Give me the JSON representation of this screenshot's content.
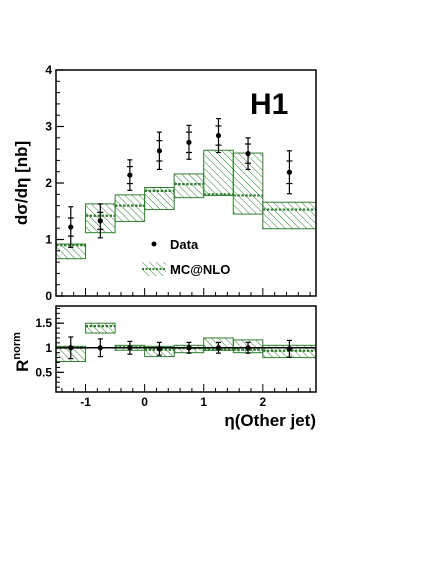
{
  "chart_data": [
    {
      "type": "histogram-with-errorbars",
      "panel": "main",
      "label": "H1",
      "ylabel": "dσ/dη [nb]",
      "xlim": [
        -1.5,
        2.9
      ],
      "ylim": [
        0,
        4
      ],
      "yticks": [
        0,
        1,
        2,
        3,
        4
      ],
      "bin_edges": [
        -1.5,
        -1.0,
        -0.5,
        0.0,
        0.5,
        1.0,
        1.5,
        2.0,
        2.9
      ],
      "series": [
        {
          "name": "Data",
          "style": "points",
          "x": [
            -1.25,
            -0.75,
            -0.25,
            0.25,
            0.75,
            1.25,
            1.75,
            2.45
          ],
          "y": [
            1.22,
            1.33,
            2.14,
            2.57,
            2.72,
            2.84,
            2.52,
            2.19
          ],
          "err_stat": [
            0.16,
            0.15,
            0.15,
            0.18,
            0.18,
            0.17,
            0.17,
            0.2
          ],
          "err_tot": [
            0.36,
            0.3,
            0.27,
            0.33,
            0.3,
            0.3,
            0.28,
            0.38
          ]
        },
        {
          "name": "MC@NLO",
          "style": "band",
          "central": [
            0.9,
            1.42,
            1.6,
            1.86,
            1.98,
            1.8,
            1.78,
            1.53
          ],
          "lower": [
            0.66,
            1.12,
            1.32,
            1.53,
            1.74,
            1.78,
            1.45,
            1.19
          ],
          "upper": [
            0.92,
            1.63,
            1.79,
            1.92,
            2.16,
            2.58,
            2.53,
            1.66
          ]
        }
      ],
      "legend": [
        "Data",
        "MC@NLO"
      ],
      "legend_position": "center-left"
    },
    {
      "type": "ratio",
      "panel": "ratio",
      "ylabel": "R",
      "ylabel_superscript": "norm",
      "xlabel": "η(Other jet)",
      "xlim": [
        -1.5,
        2.9
      ],
      "ylim": [
        0.1,
        1.85
      ],
      "yticks": [
        0.5,
        1,
        1.5
      ],
      "xticks": [
        -1,
        0,
        1,
        2
      ],
      "reference_line": 1,
      "series": [
        {
          "name": "Data",
          "x": [
            -1.25,
            -0.75,
            -0.25,
            0.25,
            0.75,
            1.25,
            1.75,
            2.45
          ],
          "y": [
            1.0,
            1.0,
            1.0,
            0.98,
            1.0,
            1.0,
            1.0,
            0.98
          ],
          "err": [
            0.22,
            0.18,
            0.13,
            0.13,
            0.11,
            0.11,
            0.11,
            0.17
          ]
        },
        {
          "name": "MC@NLO",
          "style": "band",
          "central": [
            1.0,
            1.44,
            1.01,
            0.96,
            0.99,
            0.96,
            0.96,
            0.94
          ],
          "lower": [
            0.72,
            1.3,
            0.95,
            0.82,
            0.9,
            0.95,
            0.9,
            0.8
          ],
          "upper": [
            1.03,
            1.5,
            1.05,
            1.03,
            1.05,
            1.2,
            1.16,
            1.05
          ]
        }
      ]
    }
  ],
  "colors": {
    "mc_band": "#2e7d2e",
    "data": "#000000"
  }
}
